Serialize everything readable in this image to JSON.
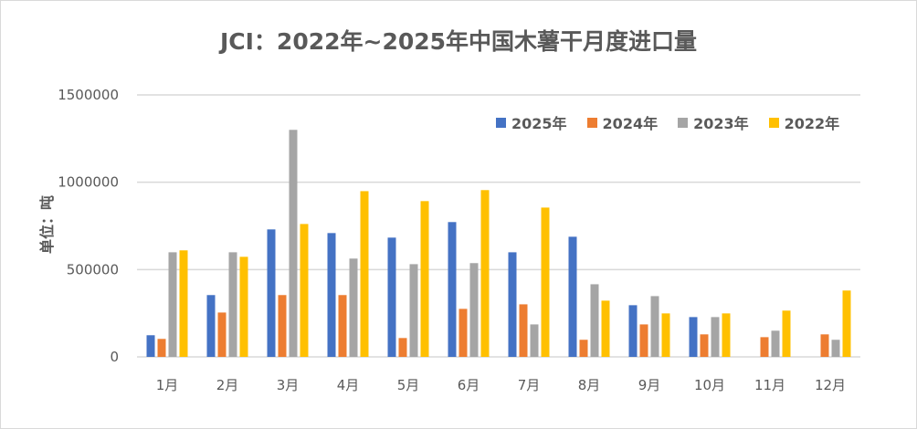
{
  "chart_data": {
    "type": "bar",
    "title": "JCI：2022年~2025年中国木薯干月度进口量",
    "xlabel": "",
    "ylabel": "单位：吨",
    "ylim": [
      0,
      1500000
    ],
    "yticks": [
      "0",
      "500000",
      "1000000",
      "1500000"
    ],
    "ytick_values": [
      0,
      500000,
      1000000,
      1500000
    ],
    "grid": true,
    "legend_position": "top-right",
    "categories": [
      "1月",
      "2月",
      "3月",
      "4月",
      "5月",
      "6月",
      "7月",
      "8月",
      "9月",
      "10月",
      "11月",
      "12月"
    ],
    "series": [
      {
        "name": "2025年",
        "color": "#4472c4",
        "values": [
          124000,
          354000,
          730000,
          709000,
          683000,
          772000,
          599000,
          688000,
          296000,
          228000,
          null,
          null
        ]
      },
      {
        "name": "2024年",
        "color": "#ed7d31",
        "values": [
          103000,
          254000,
          354000,
          354000,
          108000,
          275000,
          301000,
          98000,
          186000,
          129000,
          113000,
          129000
        ]
      },
      {
        "name": "2023年",
        "color": "#a5a5a5",
        "values": [
          599000,
          599000,
          1300000,
          563000,
          531000,
          537000,
          186000,
          416000,
          348000,
          228000,
          150000,
          98000
        ]
      },
      {
        "name": "2022年",
        "color": "#ffc000",
        "values": [
          610000,
          573000,
          761000,
          949000,
          892000,
          955000,
          855000,
          322000,
          249000,
          249000,
          265000,
          380000
        ]
      }
    ]
  }
}
